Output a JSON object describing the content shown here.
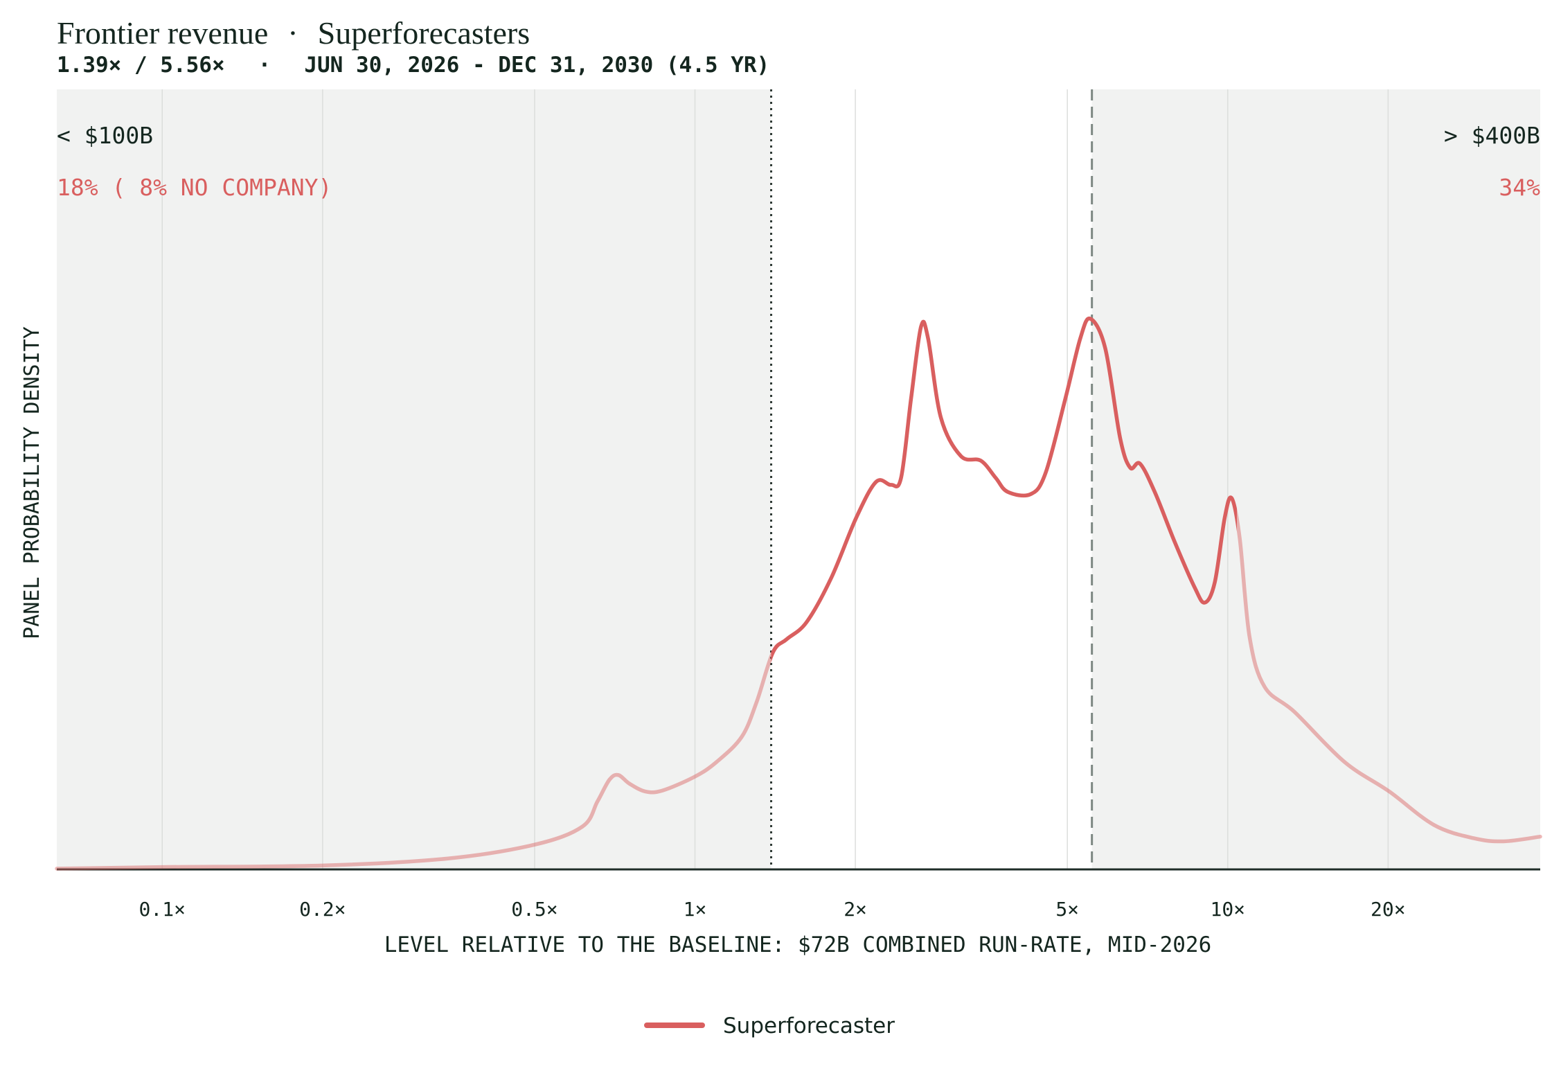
{
  "chart_data": {
    "type": "line",
    "title": "Frontier revenue",
    "title_separator": "·",
    "title_series": "Superforecasters",
    "subtitle_parts": [
      "1.39× / 5.56×",
      "·",
      "JUN 30, 2026 - DEC 31, 2030 (4.5 YR)"
    ],
    "xlabel": "LEVEL RELATIVE TO THE BASELINE: $72B COMBINED RUN-RATE, MID-2026",
    "ylabel": "PANEL PROBABILITY DENSITY",
    "xscale": "log",
    "xlim": [
      0.0634,
      38.6
    ],
    "ylim": [
      0,
      1
    ],
    "xticks": [
      {
        "value": 0.1,
        "label": "0.1×"
      },
      {
        "value": 0.2,
        "label": "0.2×"
      },
      {
        "value": 0.5,
        "label": "0.5×"
      },
      {
        "value": 1,
        "label": "1×"
      },
      {
        "value": 2,
        "label": "2×"
      },
      {
        "value": 5,
        "label": "5×"
      },
      {
        "value": 10,
        "label": "10×"
      },
      {
        "value": 20,
        "label": "20×"
      }
    ],
    "grid": true,
    "shade_tails": true,
    "reference_lines": [
      {
        "value": 1.39,
        "style": "dotted"
      },
      {
        "value": 5.56,
        "style": "dashed"
      }
    ],
    "tail_labels": [
      {
        "label": "< $100B",
        "probability": "18% ( 8% NO COMPANY)"
      },
      {
        "label": "> $400B",
        "probability": "34%"
      }
    ],
    "x": [
      0.0634,
      0.1,
      0.2,
      0.344,
      0.502,
      0.615,
      0.656,
      0.691,
      0.718,
      0.753,
      0.806,
      0.868,
      1.0,
      1.099,
      1.224,
      1.306,
      1.4,
      1.486,
      1.62,
      1.803,
      2.008,
      2.189,
      2.334,
      2.437,
      2.545,
      2.657,
      2.738,
      2.895,
      3.155,
      3.44,
      3.668,
      3.863,
      4.265,
      4.55,
      4.959,
      5.289,
      5.521,
      5.89,
      6.281,
      6.56,
      6.847,
      7.304,
      7.961,
      8.675,
      9.057,
      9.456,
      9.872,
      10.17,
      10.53,
      10.99,
      11.73,
      13.34,
      16.55,
      20.09,
      24.38,
      28.95,
      32.95,
      38.6
    ],
    "series": [
      {
        "name": "Superforecaster",
        "color": "#d95f5f",
        "emphasis_xlim": [
          1.39,
          10.4
        ],
        "values": [
          0.001,
          0.003,
          0.005,
          0.014,
          0.032,
          0.055,
          0.087,
          0.115,
          0.121,
          0.11,
          0.1,
          0.101,
          0.119,
          0.138,
          0.17,
          0.215,
          0.278,
          0.295,
          0.317,
          0.374,
          0.451,
          0.497,
          0.493,
          0.502,
          0.604,
          0.696,
          0.681,
          0.579,
          0.53,
          0.524,
          0.502,
          0.484,
          0.481,
          0.508,
          0.604,
          0.681,
          0.706,
          0.668,
          0.553,
          0.515,
          0.52,
          0.483,
          0.419,
          0.361,
          0.342,
          0.368,
          0.451,
          0.476,
          0.425,
          0.298,
          0.234,
          0.202,
          0.138,
          0.1,
          0.057,
          0.04,
          0.036,
          0.042
        ]
      }
    ],
    "legend": "bottom"
  }
}
